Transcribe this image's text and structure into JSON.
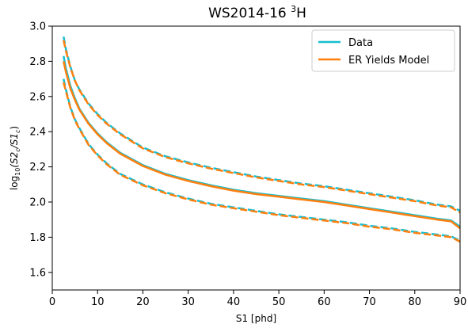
{
  "chart_data": {
    "type": "line",
    "title_main": "WS2014-16 ",
    "title_sup": "3",
    "title_tail": "H",
    "xlabel": "S1 [phd]",
    "ylabel_parts": {
      "log": "log",
      "log_sub": "10",
      "open": "(S2",
      "c1": "c",
      "slash": "/S1",
      "c2": "c",
      "close": ")"
    },
    "xlim": [
      0,
      90
    ],
    "ylim": [
      1.5,
      3.0
    ],
    "xticks": [
      0,
      10,
      20,
      30,
      40,
      50,
      60,
      70,
      80,
      90
    ],
    "yticks": [
      1.6,
      1.8,
      2.0,
      2.2,
      2.4,
      2.6,
      2.8,
      3.0
    ],
    "grid": false,
    "legend_placement": "top-right",
    "colors": {
      "data": "#17becf",
      "model": "#ff7f0e"
    },
    "series": [
      {
        "name": "Data",
        "role": "median",
        "style": "solid",
        "color": "#17becf",
        "x": [
          2.5,
          3,
          4,
          5,
          6,
          8,
          10,
          12,
          15,
          20,
          25,
          30,
          35,
          40,
          45,
          50,
          55,
          60,
          65,
          70,
          75,
          80,
          85,
          88,
          90
        ],
        "y": [
          2.83,
          2.76,
          2.66,
          2.59,
          2.53,
          2.45,
          2.39,
          2.34,
          2.28,
          2.21,
          2.16,
          2.125,
          2.095,
          2.07,
          2.05,
          2.035,
          2.02,
          2.005,
          1.985,
          1.965,
          1.945,
          1.925,
          1.905,
          1.895,
          1.86
        ]
      },
      {
        "name": "",
        "role": "upper",
        "style": "dashed",
        "color": "#17becf",
        "x": [
          2.5,
          3,
          4,
          5,
          6,
          8,
          10,
          12,
          15,
          20,
          25,
          30,
          35,
          40,
          45,
          50,
          55,
          60,
          65,
          70,
          75,
          80,
          85,
          88,
          90
        ],
        "y": [
          2.94,
          2.87,
          2.77,
          2.69,
          2.64,
          2.56,
          2.5,
          2.45,
          2.39,
          2.31,
          2.26,
          2.225,
          2.195,
          2.17,
          2.145,
          2.125,
          2.105,
          2.09,
          2.07,
          2.05,
          2.03,
          2.01,
          1.985,
          1.975,
          1.95
        ]
      },
      {
        "name": "",
        "role": "lower",
        "style": "dashed",
        "color": "#17becf",
        "x": [
          2.5,
          3,
          4,
          5,
          6,
          8,
          10,
          12,
          15,
          20,
          25,
          30,
          35,
          40,
          45,
          50,
          55,
          60,
          65,
          70,
          75,
          80,
          85,
          88,
          90
        ],
        "y": [
          2.7,
          2.64,
          2.54,
          2.47,
          2.42,
          2.33,
          2.27,
          2.22,
          2.16,
          2.1,
          2.055,
          2.02,
          1.99,
          1.97,
          1.95,
          1.93,
          1.915,
          1.9,
          1.885,
          1.865,
          1.85,
          1.83,
          1.815,
          1.805,
          1.78
        ]
      },
      {
        "name": "ER Yields Model",
        "role": "median",
        "style": "solid",
        "color": "#ff7f0e",
        "x": [
          2.5,
          3,
          4,
          5,
          6,
          8,
          10,
          12,
          15,
          20,
          25,
          30,
          35,
          40,
          45,
          50,
          55,
          60,
          65,
          70,
          75,
          80,
          85,
          88,
          90
        ],
        "y": [
          2.8,
          2.74,
          2.645,
          2.58,
          2.525,
          2.445,
          2.385,
          2.335,
          2.275,
          2.205,
          2.155,
          2.12,
          2.09,
          2.065,
          2.045,
          2.03,
          2.015,
          2.0,
          1.98,
          1.96,
          1.94,
          1.92,
          1.9,
          1.89,
          1.85
        ]
      },
      {
        "name": "",
        "role": "upper",
        "style": "dashed",
        "color": "#ff7f0e",
        "x": [
          2.5,
          3,
          4,
          5,
          6,
          8,
          10,
          12,
          15,
          20,
          25,
          30,
          35,
          40,
          45,
          50,
          55,
          60,
          65,
          70,
          75,
          80,
          85,
          88,
          90
        ],
        "y": [
          2.92,
          2.86,
          2.765,
          2.69,
          2.635,
          2.555,
          2.495,
          2.445,
          2.385,
          2.305,
          2.255,
          2.22,
          2.19,
          2.165,
          2.14,
          2.12,
          2.1,
          2.085,
          2.065,
          2.045,
          2.025,
          2.005,
          1.98,
          1.97,
          1.94
        ]
      },
      {
        "name": "",
        "role": "lower",
        "style": "dashed",
        "color": "#ff7f0e",
        "x": [
          2.5,
          3,
          4,
          5,
          6,
          8,
          10,
          12,
          15,
          20,
          25,
          30,
          35,
          40,
          45,
          50,
          55,
          60,
          65,
          70,
          75,
          80,
          85,
          88,
          90
        ],
        "y": [
          2.68,
          2.63,
          2.535,
          2.465,
          2.415,
          2.325,
          2.265,
          2.215,
          2.155,
          2.095,
          2.05,
          2.015,
          1.985,
          1.965,
          1.945,
          1.925,
          1.91,
          1.895,
          1.88,
          1.86,
          1.845,
          1.825,
          1.81,
          1.8,
          1.775
        ]
      }
    ]
  }
}
